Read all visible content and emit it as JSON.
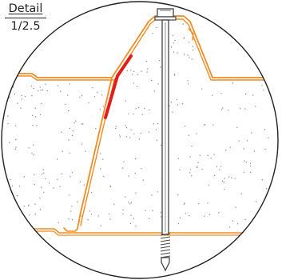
{
  "detail": {
    "title": "Detail",
    "scale": "1/2.5"
  },
  "colors": {
    "panel_outline": "#f28b22",
    "highlight": "#e31d1a",
    "circle": "#222222",
    "foam_dots": "#888888",
    "screw": "#444444"
  }
}
